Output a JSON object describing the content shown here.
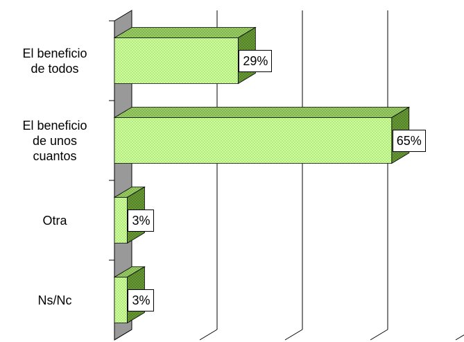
{
  "chart_data": {
    "type": "bar3d_horizontal",
    "categories": [
      "El beneficio\nde todos",
      "El beneficio\nde unos\ncuantos",
      "Otra",
      "Ns/Nc"
    ],
    "values": [
      29,
      65,
      3,
      3
    ],
    "value_labels": [
      "29%",
      "65%",
      "3%",
      "3%"
    ],
    "color": "#ccff99",
    "xlim": [
      0,
      80
    ],
    "xticks": [
      0,
      20,
      40,
      60,
      80
    ],
    "grid": true
  }
}
